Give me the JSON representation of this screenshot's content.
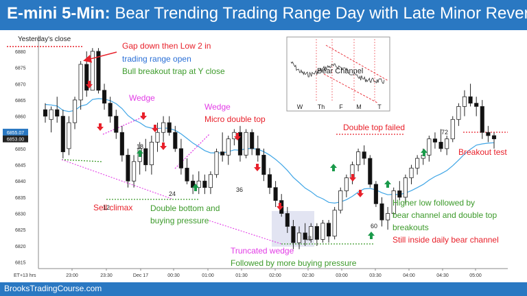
{
  "header": {
    "title_bold": "E-mini 5-Min:",
    "title_rest": " Bear Trending Trading Range Day with Late Minor Reversal"
  },
  "footer": {
    "site": "BrooksTradingCourse.com"
  },
  "chart_data": {
    "type": "candlestick",
    "x_ticks": [
      "ET+13 hrs",
      "23:00",
      "23:30",
      "Dec 17",
      "00:30",
      "01:00",
      "01:30",
      "02:00",
      "02:30",
      "03:00",
      "03:30",
      "04:00",
      "04:30",
      "05:00"
    ],
    "y_ticks": [
      6880,
      6875,
      6870,
      6865,
      6860,
      6855,
      6850,
      6845,
      6840,
      6835,
      6830,
      6825,
      6820,
      6815
    ],
    "ylim": [
      6813,
      6884
    ],
    "price_labels": [
      {
        "text": "6855.07",
        "value": 6855.07,
        "color": "#2a78c2"
      },
      {
        "text": "6853.00",
        "value": 6853.0,
        "color": "#222222"
      }
    ],
    "yesterday_close": {
      "label": "Yesterday's close",
      "value": 6881.5
    },
    "candles": [
      [
        6862,
        6864,
        6858,
        6860
      ],
      [
        6859,
        6863,
        6855,
        6862
      ],
      [
        6862,
        6866,
        6858,
        6860
      ],
      [
        6860,
        6862,
        6847,
        6849
      ],
      [
        6850,
        6860,
        6848,
        6858
      ],
      [
        6858,
        6866,
        6856,
        6865
      ],
      [
        6865,
        6877,
        6862,
        6876
      ],
      [
        6876,
        6880,
        6866,
        6868
      ],
      [
        6868,
        6881,
        6868,
        6880
      ],
      [
        6880,
        6881,
        6867,
        6868
      ],
      [
        6868,
        6870,
        6862,
        6864
      ],
      [
        6864,
        6866,
        6858,
        6860
      ],
      [
        6860,
        6862,
        6853,
        6855
      ],
      [
        6855,
        6857,
        6846,
        6848
      ],
      [
        6848,
        6850,
        6838,
        6840
      ],
      [
        6840,
        6848,
        6838,
        6846
      ],
      [
        6846,
        6852,
        6842,
        6850
      ],
      [
        6850,
        6853,
        6843,
        6845
      ],
      [
        6845,
        6854,
        6842,
        6852
      ],
      [
        6852,
        6858,
        6849,
        6855
      ],
      [
        6855,
        6860,
        6852,
        6858
      ],
      [
        6858,
        6860,
        6854,
        6855
      ],
      [
        6855,
        6857,
        6849,
        6850
      ],
      [
        6850,
        6853,
        6842,
        6844
      ],
      [
        6844,
        6847,
        6839,
        6840
      ],
      [
        6840,
        6842,
        6836,
        6838
      ],
      [
        6838,
        6843,
        6836,
        6840
      ],
      [
        6840,
        6842,
        6836,
        6838
      ],
      [
        6838,
        6843,
        6836,
        6842
      ],
      [
        6842,
        6850,
        6841,
        6849
      ],
      [
        6849,
        6855,
        6846,
        6848
      ],
      [
        6848,
        6854,
        6845,
        6853
      ],
      [
        6853,
        6856,
        6851,
        6855
      ],
      [
        6855,
        6857,
        6846,
        6848
      ],
      [
        6848,
        6856,
        6847,
        6855
      ],
      [
        6855,
        6856,
        6848,
        6850
      ],
      [
        6850,
        6854,
        6846,
        6848
      ],
      [
        6848,
        6850,
        6840,
        6842
      ],
      [
        6842,
        6844,
        6836,
        6838
      ],
      [
        6838,
        6840,
        6832,
        6834
      ],
      [
        6834,
        6836,
        6829,
        6830
      ],
      [
        6830,
        6832,
        6824,
        6826
      ],
      [
        6826,
        6828,
        6819,
        6821
      ],
      [
        6821,
        6826,
        6819,
        6824
      ],
      [
        6824,
        6827,
        6820,
        6822
      ],
      [
        6822,
        6827,
        6821,
        6826
      ],
      [
        6826,
        6827,
        6820,
        6822
      ],
      [
        6822,
        6828,
        6821,
        6827
      ],
      [
        6827,
        6828,
        6821,
        6823
      ],
      [
        6823,
        6832,
        6822,
        6831
      ],
      [
        6831,
        6838,
        6830,
        6837
      ],
      [
        6837,
        6842,
        6835,
        6841
      ],
      [
        6841,
        6846,
        6839,
        6845
      ],
      [
        6845,
        6850,
        6843,
        6849
      ],
      [
        6849,
        6851,
        6845,
        6847
      ],
      [
        6847,
        6848,
        6838,
        6839
      ],
      [
        6839,
        6840,
        6832,
        6833
      ],
      [
        6833,
        6835,
        6826,
        6828
      ],
      [
        6828,
        6832,
        6825,
        6830
      ],
      [
        6830,
        6838,
        6829,
        6837
      ],
      [
        6837,
        6840,
        6834,
        6835
      ],
      [
        6835,
        6842,
        6833,
        6841
      ],
      [
        6841,
        6845,
        6839,
        6844
      ],
      [
        6844,
        6848,
        6842,
        6847
      ],
      [
        6847,
        6850,
        6845,
        6848
      ],
      [
        6848,
        6854,
        6846,
        6853
      ],
      [
        6853,
        6855,
        6850,
        6852
      ],
      [
        6852,
        6856,
        6849,
        6850
      ],
      [
        6850,
        6854,
        6848,
        6853
      ],
      [
        6853,
        6860,
        6852,
        6859
      ],
      [
        6859,
        6864,
        6857,
        6863
      ],
      [
        6863,
        6868,
        6860,
        6866
      ],
      [
        6866,
        6870,
        6863,
        6864
      ],
      [
        6864,
        6866,
        6860,
        6863
      ],
      [
        6863,
        6865,
        6853,
        6855
      ],
      [
        6855,
        6857,
        6852,
        6854
      ],
      [
        6854,
        6855,
        6850,
        6853
      ]
    ],
    "annotations": [
      {
        "text": "Gap down then Low 2 in",
        "color": "#e8202a"
      },
      {
        "text": "trading range open",
        "color": "#2a6fd6"
      },
      {
        "text": "Bull breakout trap at Y close",
        "color": "#3c9a2a"
      },
      {
        "text": "Wedge",
        "color": "#e23ce6"
      },
      {
        "text": "Wedge",
        "color": "#e23ce6"
      },
      {
        "text": "Micro double top",
        "color": "#e8202a"
      },
      {
        "text": "Double top failed",
        "color": "#e8202a"
      },
      {
        "text": "Breakout test",
        "color": "#e8202a"
      },
      {
        "text": "Sell climax",
        "color": "#e8202a"
      },
      {
        "text": "Double bottom and",
        "color": "#3c9a2a"
      },
      {
        "text": "buying pressure",
        "color": "#3c9a2a"
      },
      {
        "text": "Truncated wedge",
        "color": "#e23ce6"
      },
      {
        "text": "Followed by more buying pressure",
        "color": "#3c9a2a"
      },
      {
        "text": "Higher low followed by",
        "color": "#3c9a2a"
      },
      {
        "text": "bear channel and double top",
        "color": "#3c9a2a"
      },
      {
        "text": "breakouts",
        "color": "#3c9a2a"
      },
      {
        "text": "Still inside daily bear channel",
        "color": "#e8202a"
      }
    ],
    "bar_numbers": [
      "12",
      "18",
      "24",
      "36",
      "48",
      "60",
      "72"
    ],
    "inset": {
      "label": "Bear Channel",
      "day_labels": [
        "W",
        "Th",
        "F",
        "M",
        "T"
      ]
    },
    "ema_color": "#3ea5e6"
  }
}
